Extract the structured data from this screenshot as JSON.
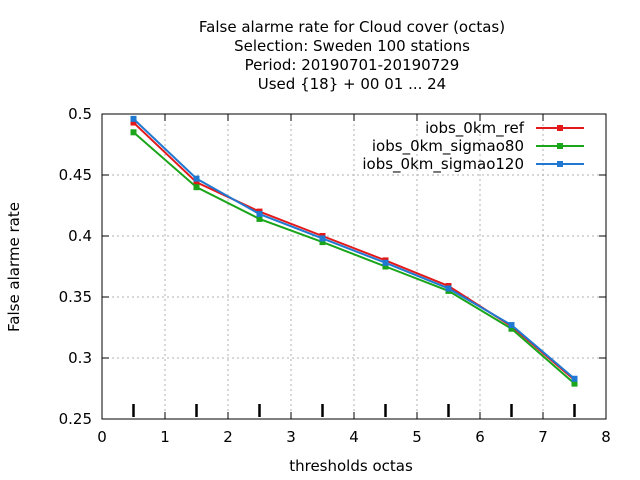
{
  "chart_data": {
    "type": "line",
    "title_lines": [
      "False alarme rate  for Cloud cover (octas)",
      "Selection: Sweden    100 stations",
      "Period: 20190701-20190729",
      "Used {18} + 00 01 ... 24"
    ],
    "xlabel": "thresholds octas",
    "ylabel": "False alarme rate",
    "xlim": [
      0,
      8
    ],
    "ylim": [
      0.25,
      0.5
    ],
    "xticks": [
      "0",
      "1",
      "2",
      "3",
      "4",
      "5",
      "6",
      "7",
      "8"
    ],
    "yticks": [
      "0.25",
      "0.3",
      "0.35",
      "0.4",
      "0.45",
      "0.5"
    ],
    "grid": true,
    "legend_position": "top-right",
    "x": [
      0.5,
      1.5,
      2.5,
      3.5,
      4.5,
      5.5,
      6.5,
      7.5
    ],
    "series": [
      {
        "name": "iobs_0km_ref",
        "color": "#e31a1c",
        "values": [
          0.493,
          0.444,
          0.42,
          0.4,
          0.38,
          0.359,
          0.326,
          0.282
        ]
      },
      {
        "name": "iobs_0km_sigmao80",
        "color": "#1aa51a",
        "values": [
          0.485,
          0.44,
          0.414,
          0.395,
          0.375,
          0.355,
          0.324,
          0.279
        ]
      },
      {
        "name": "iobs_0km_sigmao120",
        "color": "#1f78d1",
        "values": [
          0.496,
          0.447,
          0.418,
          0.398,
          0.378,
          0.357,
          0.327,
          0.283
        ]
      }
    ]
  }
}
